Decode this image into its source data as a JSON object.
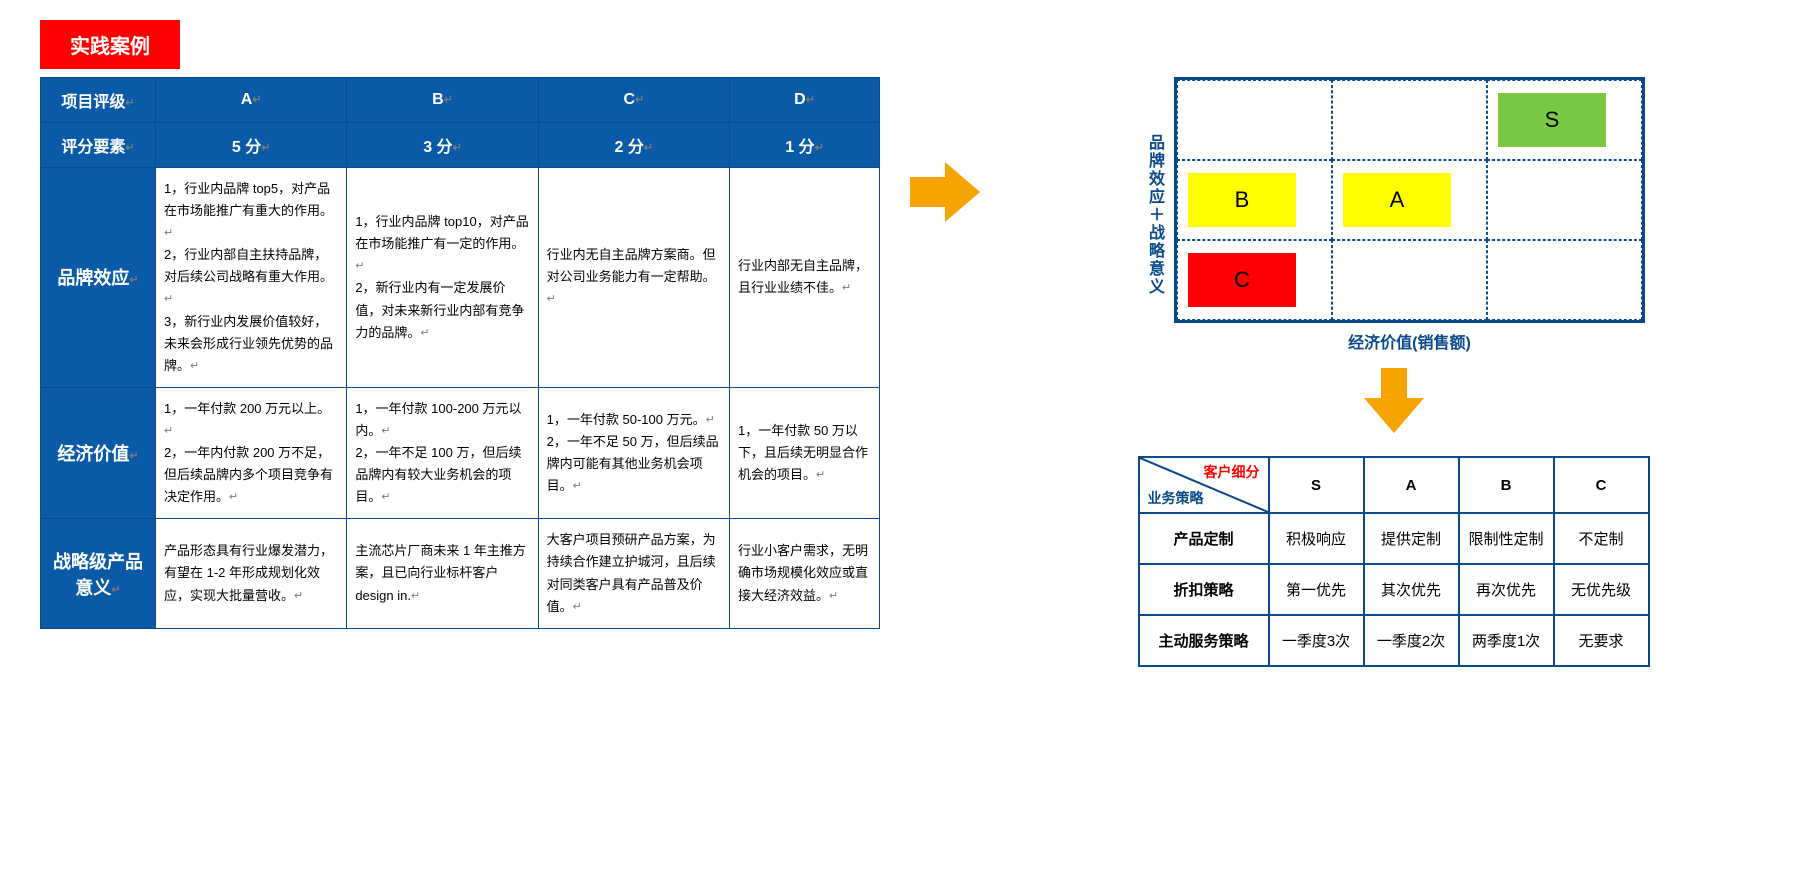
{
  "badge": "实践案例",
  "scoring": {
    "corner_top": "项目评级",
    "corner_bottom": "评分要素",
    "grades": [
      "A",
      "B",
      "C",
      "D"
    ],
    "points": [
      "5 分",
      "3 分",
      "2 分",
      "1 分"
    ],
    "rows": [
      {
        "label": "品牌效应",
        "cells": [
          "1，行业内品牌 top5，对产品在市场能推广有重大的作用。↵\n2，行业内部自主扶持品牌，对后续公司战略有重大作用。↵\n3，新行业内发展价值较好，未来会形成行业领先优势的品牌。↵",
          "1，行业内品牌 top10，对产品在市场能推广有一定的作用。↵\n2，新行业内有一定发展价值，对未来新行业内部有竞争力的品牌。↵",
          "行业内无自主品牌方案商。但对公司业务能力有一定帮助。↵",
          "行业内部无自主品牌，且行业业绩不佳。↵"
        ]
      },
      {
        "label": "经济价值",
        "cells": [
          "1，一年付款 200 万元以上。↵\n2，一年内付款 200 万不足，但后续品牌内多个项目竞争有决定作用。↵",
          "1，一年付款 100-200 万元以内。↵\n2，一年不足 100 万，但后续品牌内有较大业务机会的项目。↵",
          "1，一年付款 50-100 万元。↵\n2，一年不足 50 万，但后续品牌内可能有其他业务机会项目。↵",
          "1，一年付款 50 万以下，且后续无明显合作机会的项目。↵"
        ]
      },
      {
        "label": "战略级产品意义",
        "cells": [
          "产品形态具有行业爆发潜力，有望在 1-2 年形成规划化效应，实现大批量营收。↵",
          "主流芯片厂商未来 1 年主推方案，且已向行业标杆客户 design in.↵",
          "大客户项目预研产品方案，为持续合作建立护城河，且后续对同类客户具有产品普及价值。↵",
          "行业小客户需求，无明确市场规模化效应或直接大经济效益。↵"
        ]
      }
    ]
  },
  "matrix": {
    "ylabel": "品牌效应＋战略意义",
    "xlabel": "经济价值(销售额)",
    "cells": [
      {
        "row": 0,
        "col": 2,
        "label": "S",
        "bg": "#7ac943",
        "fg": "#000"
      },
      {
        "row": 1,
        "col": 0,
        "label": "B",
        "bg": "#ffff00",
        "fg": "#000"
      },
      {
        "row": 1,
        "col": 1,
        "label": "A",
        "bg": "#ffff00",
        "fg": "#000"
      },
      {
        "row": 2,
        "col": 0,
        "label": "C",
        "bg": "#ff0000",
        "fg": "#000"
      }
    ]
  },
  "strategy": {
    "diag_top": "客户细分",
    "diag_bottom": "业务策略",
    "cols": [
      "S",
      "A",
      "B",
      "C"
    ],
    "rows": [
      {
        "label": "产品定制",
        "cells": [
          "积极响应",
          "提供定制",
          "限制性定制",
          "不定制"
        ]
      },
      {
        "label": "折扣策略",
        "cells": [
          "第一优先",
          "其次优先",
          "再次优先",
          "无优先级"
        ]
      },
      {
        "label": "主动服务策略",
        "cells": [
          "一季度3次",
          "一季度2次",
          "两季度1次",
          "无要求"
        ]
      }
    ]
  },
  "colors": {
    "blue": "#0a5aa8",
    "darkblue": "#0a4a8a",
    "red": "#ff0000",
    "arrow": "#f7a400"
  }
}
